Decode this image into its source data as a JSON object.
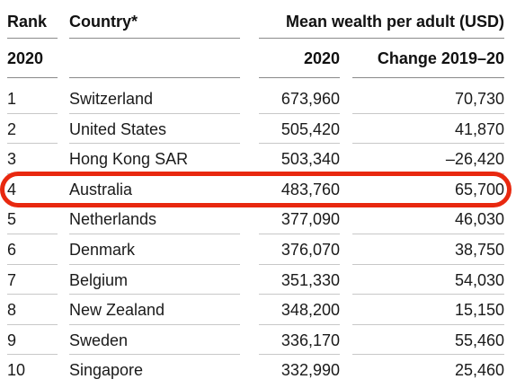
{
  "header": {
    "rank_label": "Rank",
    "country_label": "Country*",
    "mean_label": "Mean wealth per adult (USD)",
    "rank_year": "2020",
    "mean_year": "2020",
    "change_label": "Change 2019–20"
  },
  "rows": [
    {
      "rank": "1",
      "country": "Switzerland",
      "mean": "673,960",
      "change": "70,730"
    },
    {
      "rank": "2",
      "country": "United States",
      "mean": "505,420",
      "change": "41,870"
    },
    {
      "rank": "3",
      "country": "Hong Kong SAR",
      "mean": "503,340",
      "change": "–26,420"
    },
    {
      "rank": "4",
      "country": "Australia",
      "mean": "483,760",
      "change": "65,700"
    },
    {
      "rank": "5",
      "country": "Netherlands",
      "mean": "377,090",
      "change": "46,030"
    },
    {
      "rank": "6",
      "country": "Denmark",
      "mean": "376,070",
      "change": "38,750"
    },
    {
      "rank": "7",
      "country": "Belgium",
      "mean": "351,330",
      "change": "54,030"
    },
    {
      "rank": "8",
      "country": "New Zealand",
      "mean": "348,200",
      "change": "15,150"
    },
    {
      "rank": "9",
      "country": "Sweden",
      "mean": "336,170",
      "change": "55,460"
    },
    {
      "rank": "10",
      "country": "Singapore",
      "mean": "332,990",
      "change": "25,460"
    }
  ],
  "highlight": {
    "row_index": 3,
    "color": "#e8280f"
  }
}
